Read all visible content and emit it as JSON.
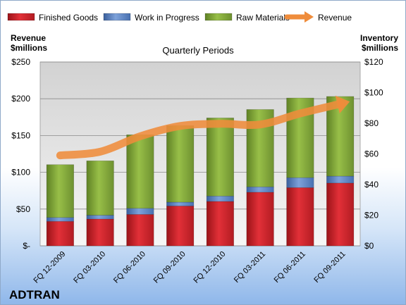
{
  "company": "ADTRAN",
  "left_axis_title": [
    "Revenue",
    "$millions"
  ],
  "right_axis_title": [
    "Inventory",
    "$millions"
  ],
  "colors": {
    "finished_goods": "#d8242b",
    "work_in_progress": "#5a83c4",
    "raw_materials": "#86ad3a",
    "revenue": "#ef8c3b"
  },
  "chart_data": {
    "type": "bar",
    "stacked": true,
    "title": "Quarterly Periods",
    "categories": [
      "FQ 12-2009",
      "FQ 03-2010",
      "FQ 06-2010",
      "FQ 09-2010",
      "FQ 12-2010",
      "FQ 03-2011",
      "FQ 06-2011",
      "FQ 09-2011"
    ],
    "left_axis": {
      "label": "Revenue $millions",
      "ylim": [
        0,
        250
      ],
      "ticks": [
        "$-",
        "$50",
        "$100",
        "$150",
        "$200",
        "$250"
      ]
    },
    "right_axis": {
      "label": "Inventory $millions",
      "ylim": [
        0,
        120
      ],
      "ticks": [
        "$0",
        "$20",
        "$40",
        "$60",
        "$80",
        "$100",
        "$120"
      ]
    },
    "series": [
      {
        "name": "Finished Goods",
        "type": "bar",
        "axis": "right",
        "values": [
          16,
          17.5,
          20.5,
          26,
          29,
          35,
          38,
          41
        ]
      },
      {
        "name": "Work in Progress",
        "type": "bar",
        "axis": "right",
        "values": [
          2.5,
          2.5,
          4,
          2.5,
          3.5,
          3.5,
          6.5,
          4.5
        ]
      },
      {
        "name": "Raw Materials",
        "type": "bar",
        "axis": "right",
        "values": [
          34.5,
          35.5,
          48,
          50,
          51,
          50.5,
          52,
          52
        ]
      },
      {
        "name": "Revenue",
        "type": "line",
        "axis": "left",
        "values": [
          123,
          128,
          149,
          163,
          166,
          165,
          180,
          193
        ]
      }
    ],
    "legend": "top",
    "grid": true
  }
}
